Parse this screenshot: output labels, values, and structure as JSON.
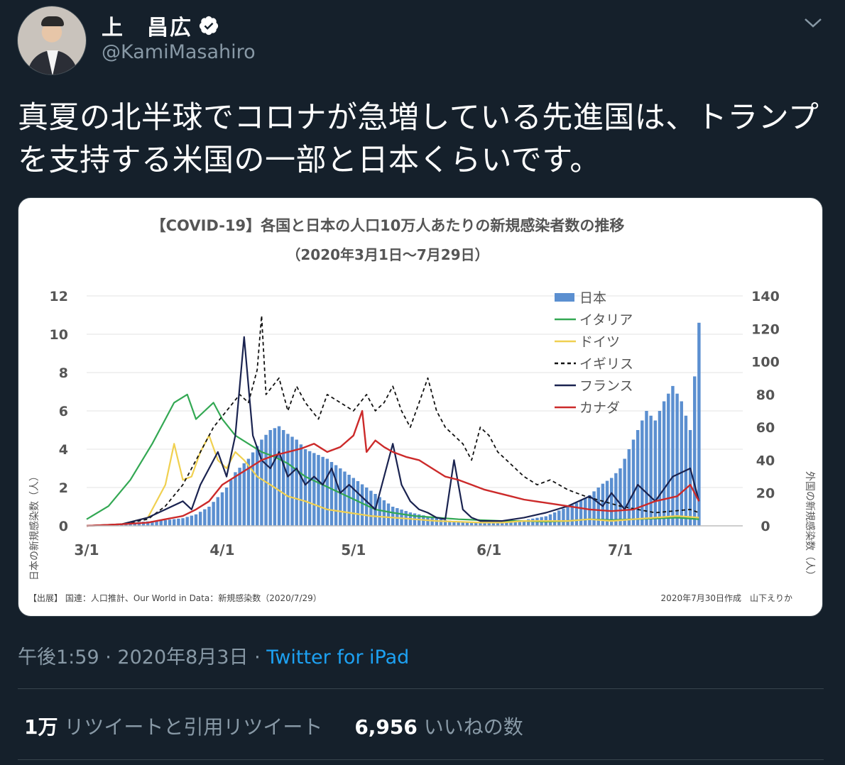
{
  "tweet": {
    "author_name": "上　昌広",
    "handle": "@KamiMasahiro",
    "text": "真夏の北半球でコロナが急増している先進国は、トランプを支持する米国の一部と日本くらいです。",
    "time": "午後1:59",
    "date": "2020年8月3日",
    "source": "Twitter for iPad",
    "retweets_count": "1万",
    "retweets_label": "リツイートと引用リツイート",
    "likes_count": "6,956",
    "likes_label": "いいねの数"
  },
  "icons": [
    "verified-badge-icon",
    "chevron-down-icon"
  ],
  "colors": {
    "background": "#15202b",
    "secondary_text": "#8899a6",
    "link": "#1da1f2",
    "japan": "#5b8fd0",
    "italy": "#33a853",
    "germany": "#f0d050",
    "uk": "#111111",
    "france": "#1a2350",
    "canada": "#cc2a2a"
  },
  "chart_data": {
    "type": "bar+line",
    "title": "【COVID-19】各国と日本の人口10万人あたりの新規感染者数の推移",
    "subtitle": "（2020年3月1日～7月29日）",
    "ylabel_left": "日本の新規感染数（人）",
    "ylabel_right": "外国の新規感染数（人）",
    "x_ticks": [
      "3/1",
      "4/1",
      "5/1",
      "6/1",
      "7/1"
    ],
    "y_left_ticks": [
      "0",
      "2",
      "4",
      "6",
      "8",
      "10",
      "12"
    ],
    "y_right_ticks": [
      "0",
      "20",
      "40",
      "60",
      "80",
      "100",
      "120",
      "140"
    ],
    "ylim_left": [
      0,
      12
    ],
    "ylim_right": [
      0,
      140
    ],
    "grid": true,
    "legend_position": "top-right",
    "legend": [
      "日本",
      "イタリア",
      "ドイツ",
      "イギリス",
      "フランス",
      "カナダ"
    ],
    "source_note": "【出展】 国連：人口推計、Our World in Data：新規感染数（2020/7/29）",
    "author_note": "2020年7月30日作成　山下えりか",
    "japan": {
      "name": "日本",
      "axis": "left",
      "points": [
        [
          0,
          0
        ],
        [
          6,
          0.1
        ],
        [
          12,
          0.2
        ],
        [
          18,
          0.3
        ],
        [
          22,
          0.4
        ],
        [
          25,
          0.6
        ],
        [
          28,
          1.0
        ],
        [
          30,
          1.5
        ],
        [
          32,
          2.0
        ],
        [
          34,
          2.8
        ],
        [
          37,
          3.5
        ],
        [
          40,
          4.5
        ],
        [
          42,
          5.0
        ],
        [
          44,
          5.2
        ],
        [
          46,
          4.8
        ],
        [
          48,
          4.5
        ],
        [
          50,
          4.0
        ],
        [
          52,
          3.8
        ],
        [
          55,
          3.5
        ],
        [
          58,
          3.0
        ],
        [
          61,
          2.5
        ],
        [
          64,
          2.0
        ],
        [
          67,
          1.5
        ],
        [
          70,
          1.0
        ],
        [
          74,
          0.7
        ],
        [
          78,
          0.5
        ],
        [
          82,
          0.3
        ],
        [
          86,
          0.2
        ],
        [
          90,
          0.15
        ],
        [
          95,
          0.2
        ],
        [
          100,
          0.3
        ],
        [
          105,
          0.5
        ],
        [
          108,
          0.8
        ],
        [
          110,
          1.0
        ],
        [
          112,
          1.2
        ],
        [
          115,
          1.6
        ],
        [
          118,
          2.2
        ],
        [
          120,
          2.5
        ],
        [
          122,
          3.0
        ],
        [
          124,
          4.0
        ],
        [
          126,
          5.0
        ],
        [
          128,
          6.0
        ],
        [
          130,
          5.5
        ],
        [
          132,
          6.5
        ],
        [
          134,
          7.3
        ],
        [
          136,
          6.5
        ],
        [
          138,
          5.0
        ],
        [
          140,
          10.6
        ]
      ]
    },
    "italy": {
      "name": "イタリア",
      "axis": "right",
      "points": [
        [
          0,
          4
        ],
        [
          5,
          12
        ],
        [
          10,
          28
        ],
        [
          15,
          50
        ],
        [
          18,
          65
        ],
        [
          20,
          75
        ],
        [
          23,
          80
        ],
        [
          25,
          65
        ],
        [
          27,
          70
        ],
        [
          29,
          75
        ],
        [
          31,
          65
        ],
        [
          34,
          55
        ],
        [
          37,
          50
        ],
        [
          40,
          45
        ],
        [
          43,
          42
        ],
        [
          46,
          38
        ],
        [
          50,
          30
        ],
        [
          54,
          25
        ],
        [
          58,
          20
        ],
        [
          62,
          15
        ],
        [
          66,
          10
        ],
        [
          70,
          8
        ],
        [
          75,
          6
        ],
        [
          80,
          5
        ],
        [
          85,
          4
        ],
        [
          90,
          3.5
        ],
        [
          95,
          3
        ],
        [
          100,
          3
        ],
        [
          105,
          2.5
        ],
        [
          110,
          3
        ],
        [
          115,
          4
        ],
        [
          120,
          3.5
        ],
        [
          125,
          4
        ],
        [
          130,
          4.5
        ],
        [
          135,
          5
        ],
        [
          140,
          4
        ]
      ]
    },
    "germany": {
      "name": "ドイツ",
      "axis": "right",
      "points": [
        [
          0,
          0
        ],
        [
          8,
          1
        ],
        [
          14,
          5
        ],
        [
          18,
          25
        ],
        [
          20,
          50
        ],
        [
          22,
          28
        ],
        [
          24,
          30
        ],
        [
          26,
          45
        ],
        [
          28,
          55
        ],
        [
          30,
          40
        ],
        [
          32,
          35
        ],
        [
          34,
          45
        ],
        [
          36,
          40
        ],
        [
          39,
          30
        ],
        [
          42,
          25
        ],
        [
          46,
          18
        ],
        [
          50,
          15
        ],
        [
          55,
          10
        ],
        [
          60,
          8
        ],
        [
          65,
          6
        ],
        [
          70,
          5
        ],
        [
          75,
          4
        ],
        [
          80,
          3
        ],
        [
          85,
          2.5
        ],
        [
          90,
          2
        ],
        [
          95,
          2
        ],
        [
          100,
          3
        ],
        [
          105,
          3
        ],
        [
          110,
          3
        ],
        [
          115,
          4
        ],
        [
          120,
          3
        ],
        [
          125,
          4
        ],
        [
          130,
          5
        ],
        [
          135,
          6
        ],
        [
          140,
          5
        ]
      ]
    },
    "uk": {
      "name": "イギリス",
      "axis": "right",
      "points": [
        [
          0,
          0
        ],
        [
          8,
          1
        ],
        [
          14,
          4
        ],
        [
          18,
          12
        ],
        [
          22,
          25
        ],
        [
          26,
          45
        ],
        [
          29,
          60
        ],
        [
          32,
          70
        ],
        [
          35,
          80
        ],
        [
          37,
          75
        ],
        [
          39,
          95
        ],
        [
          40,
          128
        ],
        [
          41,
          80
        ],
        [
          44,
          90
        ],
        [
          46,
          70
        ],
        [
          48,
          85
        ],
        [
          50,
          75
        ],
        [
          53,
          65
        ],
        [
          55,
          80
        ],
        [
          58,
          75
        ],
        [
          61,
          70
        ],
        [
          64,
          80
        ],
        [
          66,
          70
        ],
        [
          68,
          75
        ],
        [
          70,
          85
        ],
        [
          72,
          70
        ],
        [
          74,
          60
        ],
        [
          76,
          75
        ],
        [
          78,
          90
        ],
        [
          80,
          70
        ],
        [
          82,
          60
        ],
        [
          84,
          55
        ],
        [
          86,
          50
        ],
        [
          88,
          40
        ],
        [
          90,
          60
        ],
        [
          92,
          55
        ],
        [
          94,
          45
        ],
        [
          96,
          40
        ],
        [
          98,
          35
        ],
        [
          100,
          30
        ],
        [
          103,
          25
        ],
        [
          106,
          28
        ],
        [
          110,
          22
        ],
        [
          114,
          18
        ],
        [
          118,
          15
        ],
        [
          122,
          12
        ],
        [
          126,
          10
        ],
        [
          130,
          8
        ],
        [
          134,
          9
        ],
        [
          138,
          10
        ],
        [
          140,
          8
        ]
      ]
    },
    "france": {
      "name": "フランス",
      "axis": "right",
      "points": [
        [
          0,
          0
        ],
        [
          8,
          1
        ],
        [
          14,
          5
        ],
        [
          18,
          10
        ],
        [
          22,
          15
        ],
        [
          24,
          10
        ],
        [
          26,
          25
        ],
        [
          28,
          35
        ],
        [
          30,
          45
        ],
        [
          32,
          30
        ],
        [
          34,
          55
        ],
        [
          36,
          115
        ],
        [
          38,
          55
        ],
        [
          40,
          40
        ],
        [
          42,
          35
        ],
        [
          44,
          45
        ],
        [
          46,
          30
        ],
        [
          48,
          35
        ],
        [
          50,
          25
        ],
        [
          52,
          30
        ],
        [
          54,
          25
        ],
        [
          56,
          35
        ],
        [
          58,
          20
        ],
        [
          60,
          25
        ],
        [
          62,
          20
        ],
        [
          64,
          15
        ],
        [
          66,
          10
        ],
        [
          68,
          30
        ],
        [
          70,
          50
        ],
        [
          72,
          25
        ],
        [
          74,
          15
        ],
        [
          76,
          10
        ],
        [
          78,
          8
        ],
        [
          80,
          5
        ],
        [
          82,
          4
        ],
        [
          84,
          40
        ],
        [
          86,
          10
        ],
        [
          88,
          5
        ],
        [
          90,
          3
        ],
        [
          95,
          3
        ],
        [
          100,
          5
        ],
        [
          105,
          8
        ],
        [
          110,
          12
        ],
        [
          115,
          18
        ],
        [
          118,
          12
        ],
        [
          120,
          20
        ],
        [
          123,
          10
        ],
        [
          126,
          25
        ],
        [
          130,
          15
        ],
        [
          134,
          30
        ],
        [
          138,
          35
        ],
        [
          140,
          15
        ]
      ]
    },
    "canada": {
      "name": "カナダ",
      "axis": "right",
      "points": [
        [
          0,
          0
        ],
        [
          8,
          1
        ],
        [
          14,
          2
        ],
        [
          18,
          4
        ],
        [
          22,
          6
        ],
        [
          25,
          10
        ],
        [
          28,
          15
        ],
        [
          31,
          25
        ],
        [
          34,
          30
        ],
        [
          37,
          35
        ],
        [
          40,
          40
        ],
        [
          43,
          43
        ],
        [
          46,
          45
        ],
        [
          49,
          47
        ],
        [
          52,
          50
        ],
        [
          55,
          45
        ],
        [
          58,
          48
        ],
        [
          61,
          55
        ],
        [
          63,
          70
        ],
        [
          64,
          45
        ],
        [
          66,
          52
        ],
        [
          68,
          48
        ],
        [
          70,
          45
        ],
        [
          73,
          42
        ],
        [
          76,
          40
        ],
        [
          79,
          35
        ],
        [
          82,
          30
        ],
        [
          85,
          28
        ],
        [
          88,
          25
        ],
        [
          91,
          22
        ],
        [
          94,
          20
        ],
        [
          97,
          18
        ],
        [
          100,
          16
        ],
        [
          105,
          14
        ],
        [
          110,
          12
        ],
        [
          115,
          10
        ],
        [
          120,
          9
        ],
        [
          125,
          10
        ],
        [
          130,
          15
        ],
        [
          135,
          18
        ],
        [
          138,
          25
        ],
        [
          140,
          15
        ]
      ]
    }
  }
}
